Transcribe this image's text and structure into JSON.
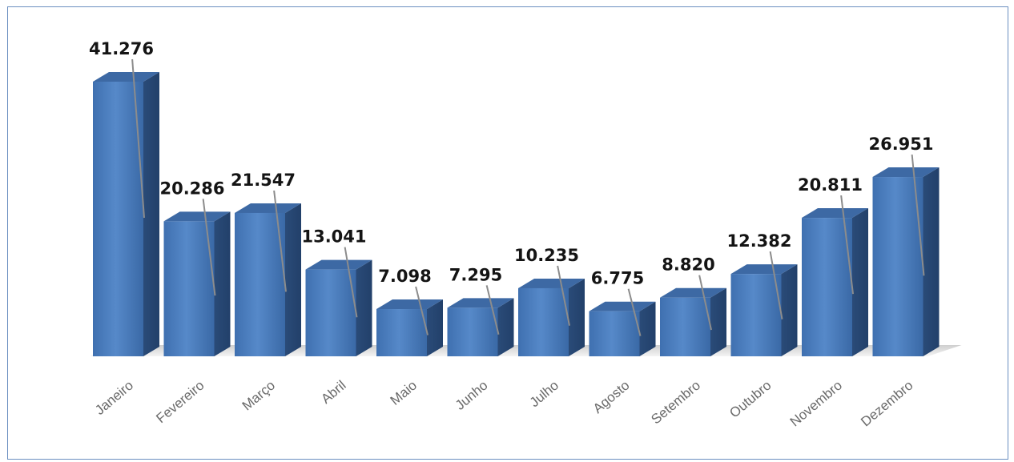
{
  "chart_data": {
    "type": "bar",
    "style": "3d-column",
    "categories": [
      "Janeiro",
      "Fevereiro",
      "Março",
      "Abril",
      "Maio",
      "Junho",
      "Julho",
      "Agosto",
      "Setembro",
      "Outubro",
      "Novembro",
      "Dezembro"
    ],
    "values": [
      41276,
      20286,
      21547,
      13041,
      7098,
      7295,
      10235,
      6775,
      8820,
      12382,
      20811,
      26951
    ],
    "value_labels": [
      "41.276",
      "20.286",
      "21.547",
      "13.041",
      "7.098",
      "7.295",
      "10.235",
      "6.775",
      "8.820",
      "12.382",
      "20.811",
      "26.951"
    ],
    "title": "",
    "xlabel": "",
    "ylabel": "",
    "ylim": [
      0,
      42000
    ],
    "grid": false,
    "legend": "none",
    "colors": {
      "front": "#4a7ec0",
      "side": "#2c4f7d",
      "top": "#3d69a4",
      "floor_shadow": "#d6d6d6",
      "leader": "#8c8c8c"
    }
  }
}
